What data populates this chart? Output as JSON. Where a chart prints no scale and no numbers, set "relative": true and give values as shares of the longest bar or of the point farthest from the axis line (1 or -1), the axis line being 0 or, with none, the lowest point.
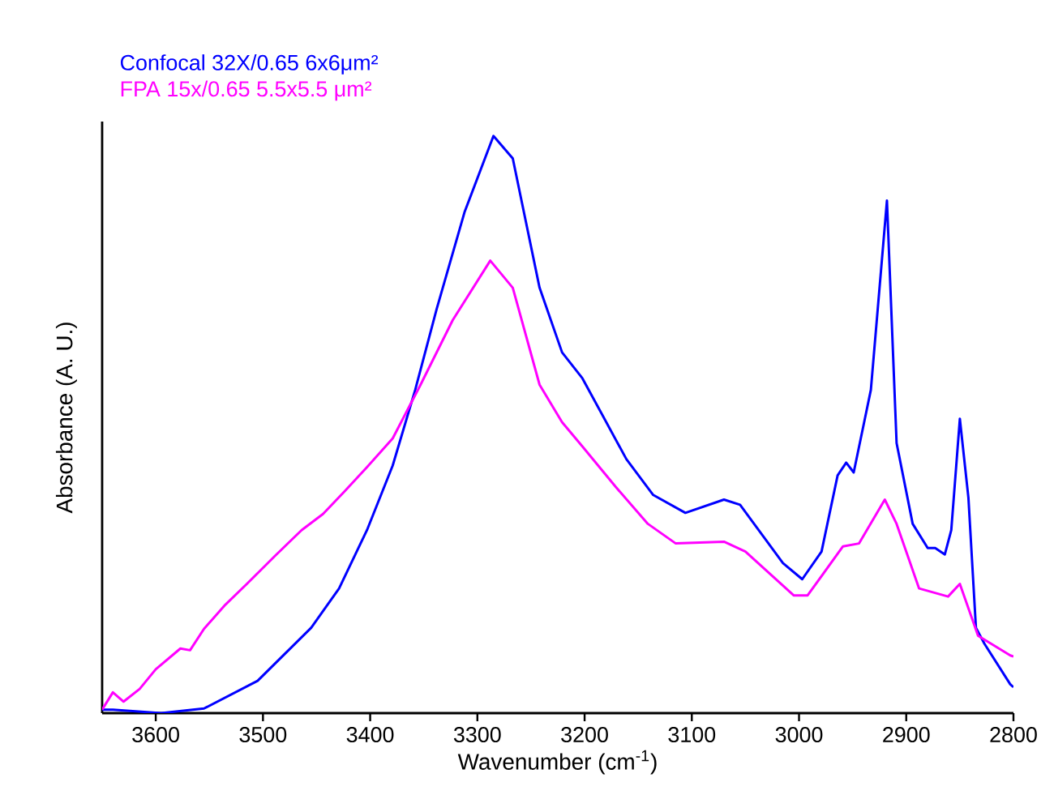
{
  "chart_data": {
    "type": "line",
    "relative": true,
    "xlabel": "Wavenumber (cm$^{-1}$)",
    "ylabel": "Absorbance (A. U.)",
    "xlim": [
      3650,
      2800
    ],
    "xticks": [
      3600,
      3500,
      3400,
      3300,
      3200,
      3100,
      3000,
      2900,
      2800
    ],
    "legend": "top left",
    "grid": false,
    "marker": "none",
    "line_style": "solid",
    "series": [
      {
        "name": "Confocal 32X/0.65 6x6μm²",
        "color": "#0000ff",
        "x": [
          3650,
          3640,
          3595,
          3555,
          3505,
          3455,
          3429,
          3403,
          3379,
          3358,
          3338,
          3312,
          3285,
          3267,
          3242,
          3221,
          3202,
          3161,
          3136,
          3106,
          3070,
          3055,
          3015,
          2997,
          2979,
          2964,
          2956,
          2949,
          2933,
          2918,
          2909,
          2894,
          2880,
          2873,
          2864,
          2858,
          2850,
          2842,
          2835,
          2827,
          2803,
          2800
        ],
        "values": [
          0.006,
          0.006,
          0,
          0.008,
          0.056,
          0.148,
          0.216,
          0.317,
          0.429,
          0.56,
          0.7,
          0.868,
          1,
          0.961,
          0.737,
          0.625,
          0.58,
          0.44,
          0.378,
          0.347,
          0.37,
          0.361,
          0.26,
          0.232,
          0.28,
          0.412,
          0.434,
          0.417,
          0.56,
          0.888,
          0.468,
          0.328,
          0.286,
          0.286,
          0.275,
          0.317,
          0.51,
          0.373,
          0.148,
          0.12,
          0.05,
          0.045
        ]
      },
      {
        "name": "FPA 15x/0.65 5.5x5.5 μm²",
        "color": "#ff00ff",
        "x": [
          3650,
          3640,
          3630,
          3615,
          3600,
          3577,
          3568,
          3555,
          3535,
          3515,
          3489,
          3464,
          3444,
          3424,
          3403,
          3379,
          3353,
          3323,
          3288,
          3267,
          3242,
          3221,
          3202,
          3171,
          3141,
          3115,
          3070,
          3050,
          3005,
          2992,
          2959,
          2944,
          2920,
          2909,
          2888,
          2861,
          2850,
          2833,
          2803,
          2800
        ],
        "values": [
          0.006,
          0.036,
          0.02,
          0.042,
          0.076,
          0.112,
          0.109,
          0.146,
          0.188,
          0.224,
          0.272,
          0.317,
          0.345,
          0.384,
          0.426,
          0.476,
          0.569,
          0.681,
          0.784,
          0.737,
          0.569,
          0.504,
          0.462,
          0.392,
          0.328,
          0.294,
          0.297,
          0.28,
          0.204,
          0.204,
          0.289,
          0.294,
          0.37,
          0.328,
          0.216,
          0.202,
          0.224,
          0.134,
          0.1,
          0.098
        ]
      }
    ]
  }
}
